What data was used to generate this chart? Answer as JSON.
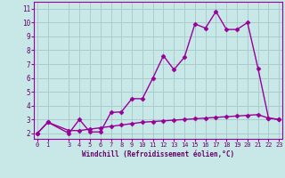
{
  "xlabel": "Windchill (Refroidissement éolien,°C)",
  "x_ticks": [
    0,
    1,
    3,
    4,
    5,
    6,
    7,
    8,
    9,
    10,
    11,
    12,
    13,
    14,
    15,
    16,
    17,
    18,
    19,
    20,
    21,
    22,
    23
  ],
  "y_ticks": [
    2,
    3,
    4,
    5,
    6,
    7,
    8,
    9,
    10,
    11
  ],
  "ylim": [
    1.6,
    11.5
  ],
  "xlim": [
    -0.3,
    23.3
  ],
  "line1_x": [
    0,
    1,
    3,
    4,
    5,
    6,
    7,
    8,
    9,
    10,
    11,
    12,
    13,
    14,
    15,
    16,
    17,
    18,
    19,
    20,
    21,
    22,
    23
  ],
  "line1_y": [
    2.0,
    2.8,
    2.0,
    3.0,
    2.1,
    2.1,
    3.5,
    3.55,
    4.5,
    4.5,
    6.0,
    7.6,
    6.6,
    7.5,
    9.9,
    9.6,
    10.8,
    9.5,
    9.5,
    10.0,
    6.7,
    3.1,
    3.0
  ],
  "line2_x": [
    0,
    1,
    3,
    4,
    5,
    6,
    7,
    8,
    9,
    10,
    11,
    12,
    13,
    14,
    15,
    16,
    17,
    18,
    19,
    20,
    21,
    22,
    23
  ],
  "line2_y": [
    2.0,
    2.8,
    2.2,
    2.2,
    2.3,
    2.4,
    2.5,
    2.6,
    2.7,
    2.8,
    2.85,
    2.9,
    2.95,
    3.0,
    3.05,
    3.1,
    3.15,
    3.2,
    3.25,
    3.3,
    3.35,
    3.1,
    3.0
  ],
  "line_color": "#990099",
  "bg_color": "#c8e8e8",
  "grid_color": "#aacccc",
  "tick_label_color": "#660066",
  "axis_label_color": "#660066",
  "marker": "D",
  "markersize": 2.5,
  "linewidth": 1.0
}
